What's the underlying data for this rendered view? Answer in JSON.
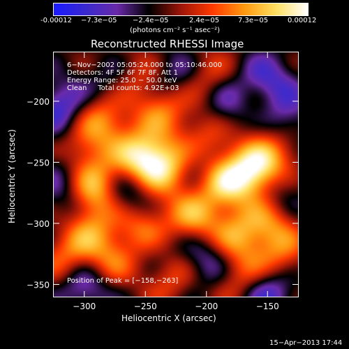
{
  "colorbar": {
    "tick_labels": [
      "-0.00012",
      "−7.3e−05",
      "−2.4e−05",
      "2.4e−05",
      "7.3e−05",
      "0.00012"
    ],
    "units_label": "(photons cm⁻² s⁻¹ asec⁻²)",
    "colors": [
      "#1b1bff",
      "#3b2ad0",
      "#6a2aa8",
      "#000000",
      "#9e1608",
      "#ff3a00",
      "#ff9a10",
      "#ffe060",
      "#ffffff"
    ]
  },
  "title": "Reconstructed RHESSI Image",
  "info": {
    "line1": "6−Nov−2002 05:05:24.000 to 05:10:46.000",
    "line2": "Detectors: 4F 5F 6F 7F 8F, Att 1",
    "line3": "Energy Range: 25.0 − 50.0 keV",
    "line4": "Clean     Total counts: 4.92E+03"
  },
  "peak_label": "Position of Peak = [−158,−263]",
  "x_axis": {
    "label": "Heliocentric X (arcsec)",
    "ticks": [
      "−300",
      "−250",
      "−200",
      "−150"
    ],
    "tick_values": [
      -300,
      -250,
      -200,
      -150
    ],
    "range": [
      -325,
      -125
    ]
  },
  "y_axis": {
    "label": "Heliocentric Y (arcsec)",
    "ticks": [
      "−200",
      "−250",
      "−300",
      "−350"
    ],
    "tick_values": [
      -200,
      -250,
      -300,
      -350
    ],
    "range": [
      -360,
      -160
    ]
  },
  "timestamp": "15−Apr−2013 17:44",
  "blobs": [
    {
      "x": -253,
      "y": -247,
      "v": 1.0
    },
    {
      "x": -160,
      "y": -258,
      "v": 1.0
    },
    {
      "x": -230,
      "y": -254,
      "v": 0.8
    },
    {
      "x": -185,
      "y": -265,
      "v": 0.75
    },
    {
      "x": -290,
      "y": -272,
      "v": 0.8
    },
    {
      "x": -300,
      "y": -300,
      "v": 0.7
    },
    {
      "x": -250,
      "y": -305,
      "v": 0.7
    },
    {
      "x": -210,
      "y": -295,
      "v": 0.65
    },
    {
      "x": -175,
      "y": -310,
      "v": 0.6
    },
    {
      "x": -145,
      "y": -300,
      "v": 0.55
    },
    {
      "x": -285,
      "y": -215,
      "v": 0.65
    },
    {
      "x": -305,
      "y": -245,
      "v": 0.6
    },
    {
      "x": -235,
      "y": -205,
      "v": 0.55
    },
    {
      "x": -200,
      "y": -230,
      "v": 0.5
    },
    {
      "x": -160,
      "y": -205,
      "v": 0.45
    },
    {
      "x": -280,
      "y": -330,
      "v": 0.55
    },
    {
      "x": -230,
      "y": -340,
      "v": 0.5
    },
    {
      "x": -170,
      "y": -345,
      "v": 0.5
    },
    {
      "x": -140,
      "y": -330,
      "v": 0.45
    },
    {
      "x": -315,
      "y": -330,
      "v": 0.5
    },
    {
      "x": -260,
      "y": -180,
      "v": 0.45
    },
    {
      "x": -200,
      "y": -180,
      "v": 0.4
    },
    {
      "x": -140,
      "y": -240,
      "v": 0.45
    },
    {
      "x": -320,
      "y": -205,
      "v": -0.6
    },
    {
      "x": -315,
      "y": -255,
      "v": -0.5
    },
    {
      "x": -265,
      "y": -275,
      "v": -0.55
    },
    {
      "x": -210,
      "y": -250,
      "v": -0.5
    },
    {
      "x": -180,
      "y": -205,
      "v": -0.55
    },
    {
      "x": -150,
      "y": -185,
      "v": -0.6
    },
    {
      "x": -135,
      "y": -215,
      "v": -0.5
    },
    {
      "x": -150,
      "y": -355,
      "v": -0.7
    },
    {
      "x": -300,
      "y": -350,
      "v": -0.6
    },
    {
      "x": -240,
      "y": -320,
      "v": -0.45
    },
    {
      "x": -200,
      "y": -330,
      "v": -0.5
    },
    {
      "x": -310,
      "y": -290,
      "v": -0.45
    },
    {
      "x": -225,
      "y": -180,
      "v": -0.45
    },
    {
      "x": -275,
      "y": -185,
      "v": -0.4
    },
    {
      "x": -140,
      "y": -275,
      "v": -0.4
    }
  ]
}
